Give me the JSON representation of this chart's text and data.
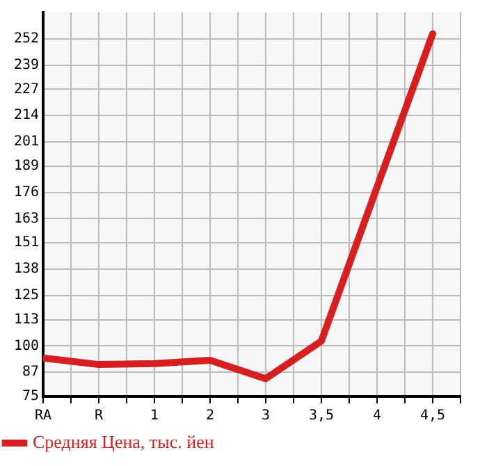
{
  "chart_data": {
    "type": "line",
    "categories": [
      "RA",
      "R",
      "1",
      "2",
      "3",
      "3,5",
      "4",
      "4,5"
    ],
    "series": [
      {
        "name": "Средняя Цена, тыс. йен",
        "color": "#d71f1f",
        "values": [
          94,
          90.8,
          91.3,
          92.9,
          83.8,
          102.4,
          178.6,
          254.5
        ]
      }
    ],
    "ylim": [
      75,
      265
    ],
    "yticks": [
      75,
      87,
      100,
      113,
      125,
      138,
      151,
      163,
      176,
      189,
      201,
      214,
      227,
      239,
      252
    ],
    "grid": true,
    "legend": "bottom left",
    "marker": "none",
    "line_style": "solid"
  }
}
